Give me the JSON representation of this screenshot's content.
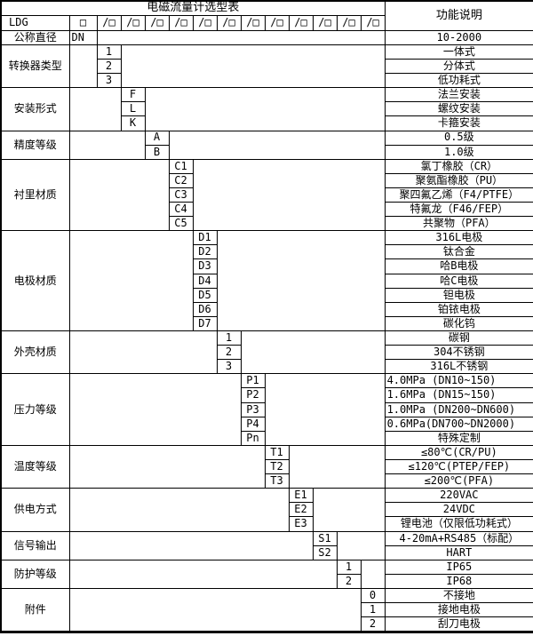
{
  "title": "电磁流量计选型表",
  "function_header": "功能说明",
  "model_row": {
    "prefix": "LDG",
    "box": "□",
    "code_cell": "/□",
    "code_cell_count": 12
  },
  "diameter_row": {
    "label": "公称直径",
    "code": "DN",
    "description": "10-2000"
  },
  "sections": [
    {
      "label": "转换器类型",
      "column": 1,
      "options": [
        {
          "code": "1",
          "desc": "一体式"
        },
        {
          "code": "2",
          "desc": "分体式"
        },
        {
          "code": "3",
          "desc": "低功耗式"
        }
      ]
    },
    {
      "label": "安装形式",
      "column": 2,
      "options": [
        {
          "code": "F",
          "desc": "法兰安装"
        },
        {
          "code": "L",
          "desc": "螺纹安装"
        },
        {
          "code": "K",
          "desc": "卡箍安装"
        }
      ]
    },
    {
      "label": "精度等级",
      "column": 3,
      "options": [
        {
          "code": "A",
          "desc": "0.5级"
        },
        {
          "code": "B",
          "desc": "1.0级"
        }
      ]
    },
    {
      "label": "衬里材质",
      "column": 4,
      "options": [
        {
          "code": "C1",
          "desc": "氯丁橡胶（CR）"
        },
        {
          "code": "C2",
          "desc": "聚氨酯橡胶（PU）"
        },
        {
          "code": "C3",
          "desc": "聚四氟乙烯（F4/PTFE）"
        },
        {
          "code": "C4",
          "desc": "特氟龙（F46/FEP）"
        },
        {
          "code": "C5",
          "desc": "共聚物（PFA）"
        }
      ]
    },
    {
      "label": "电极材质",
      "column": 5,
      "options": [
        {
          "code": "D1",
          "desc": "316L电极"
        },
        {
          "code": "D2",
          "desc": "钛合金"
        },
        {
          "code": "D3",
          "desc": "哈B电极"
        },
        {
          "code": "D4",
          "desc": "哈C电极"
        },
        {
          "code": "D5",
          "desc": "钽电极"
        },
        {
          "code": "D6",
          "desc": "铂铱电极"
        },
        {
          "code": "D7",
          "desc": "碳化钨"
        }
      ]
    },
    {
      "label": "外壳材质",
      "column": 6,
      "options": [
        {
          "code": "1",
          "desc": "碳钢"
        },
        {
          "code": "2",
          "desc": "304不锈钢"
        },
        {
          "code": "3",
          "desc": "316L不锈钢"
        }
      ]
    },
    {
      "label": "压力等级",
      "column": 7,
      "options": [
        {
          "code": "P1",
          "desc": "4.0MPa (DN10~150)",
          "align": "left"
        },
        {
          "code": "P2",
          "desc": "1.6MPa (DN15~150)",
          "align": "left"
        },
        {
          "code": "P3",
          "desc": "1.0MPa (DN200~DN600)",
          "align": "left"
        },
        {
          "code": "P4",
          "desc": "0.6MPa(DN700~DN2000)",
          "align": "left"
        },
        {
          "code": "Pn",
          "desc": "特殊定制"
        }
      ]
    },
    {
      "label": "温度等级",
      "column": 8,
      "options": [
        {
          "code": "T1",
          "desc": "≤80℃(CR/PU)"
        },
        {
          "code": "T2",
          "desc": "≤120℃(PTEP/FEP)"
        },
        {
          "code": "T3",
          "desc": "≤200℃(PFA)"
        }
      ]
    },
    {
      "label": "供电方式",
      "column": 9,
      "options": [
        {
          "code": "E1",
          "desc": "220VAC"
        },
        {
          "code": "E2",
          "desc": "24VDC"
        },
        {
          "code": "E3",
          "desc": "锂电池（仅限低功耗式）"
        }
      ]
    },
    {
      "label": "信号输出",
      "column": 10,
      "options": [
        {
          "code": "S1",
          "desc": "4-20mA+RS485（标配）"
        },
        {
          "code": "S2",
          "desc": "HART"
        }
      ]
    },
    {
      "label": "防护等级",
      "column": 11,
      "options": [
        {
          "code": "1",
          "desc": "IP65"
        },
        {
          "code": "2",
          "desc": "IP68"
        }
      ]
    },
    {
      "label": "附件",
      "column": 12,
      "options": [
        {
          "code": "0",
          "desc": "不接地"
        },
        {
          "code": "1",
          "desc": "接地电极"
        },
        {
          "code": "2",
          "desc": "刮刀电极"
        }
      ]
    }
  ],
  "layout_colors": {
    "border": "#000000",
    "background": "#ffffff",
    "text": "#000000"
  }
}
